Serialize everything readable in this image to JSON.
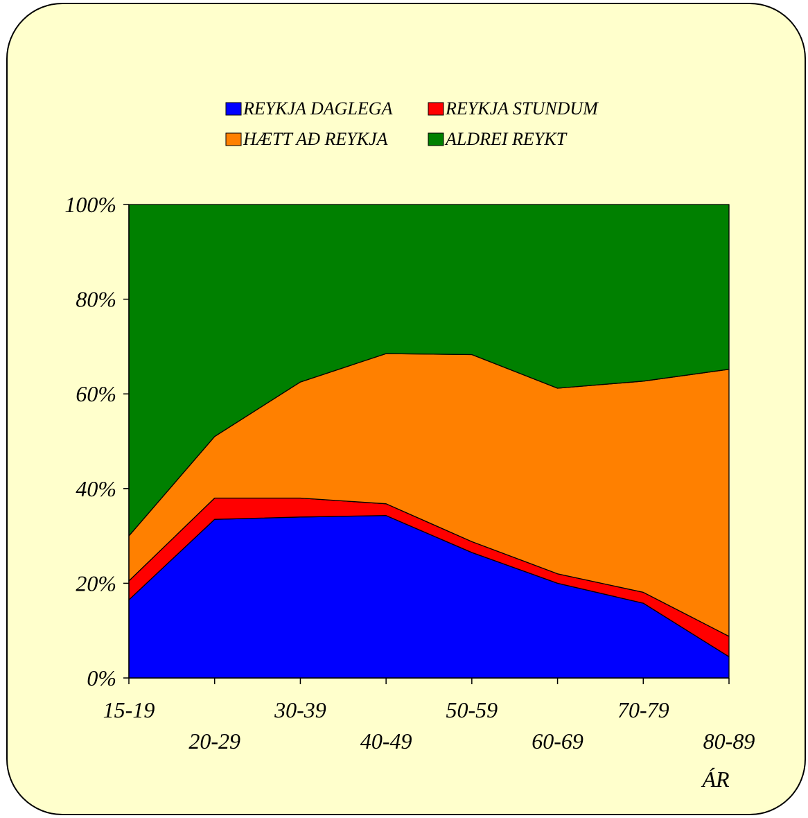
{
  "chart_data": {
    "type": "area",
    "stacked": "percent",
    "categories": [
      "15-19",
      "20-29",
      "30-39",
      "40-49",
      "50-59",
      "60-69",
      "70-79",
      "80-89"
    ],
    "series": [
      {
        "name": "REYKJA DAGLEGA",
        "color": "#0000ff",
        "values": [
          16.5,
          33.5,
          34,
          34.3,
          26.5,
          20,
          15.8,
          4.5
        ]
      },
      {
        "name": "REYKJA STUNDUM",
        "color": "#ff0000",
        "values": [
          4,
          4.5,
          4,
          2.5,
          2.3,
          2,
          2.3,
          4.3
        ]
      },
      {
        "name": "HÆTT AÐ REYKJA",
        "color": "#ff8000",
        "values": [
          9.5,
          13,
          24.5,
          31.7,
          39.5,
          39.2,
          44.6,
          56.4
        ]
      },
      {
        "name": "ALDREI REYKT",
        "color": "#008000",
        "values": [
          70,
          49,
          37.5,
          31.5,
          31.7,
          38.8,
          37.3,
          34.8
        ]
      }
    ],
    "y_ticks": [
      "0%",
      "20%",
      "40%",
      "60%",
      "80%",
      "100%"
    ],
    "ylim": [
      0,
      100
    ],
    "xlabel": "ÁR",
    "ylabel": "",
    "title": "",
    "legend_position": "top",
    "grid": false,
    "panel_background": "#ffffcc"
  }
}
